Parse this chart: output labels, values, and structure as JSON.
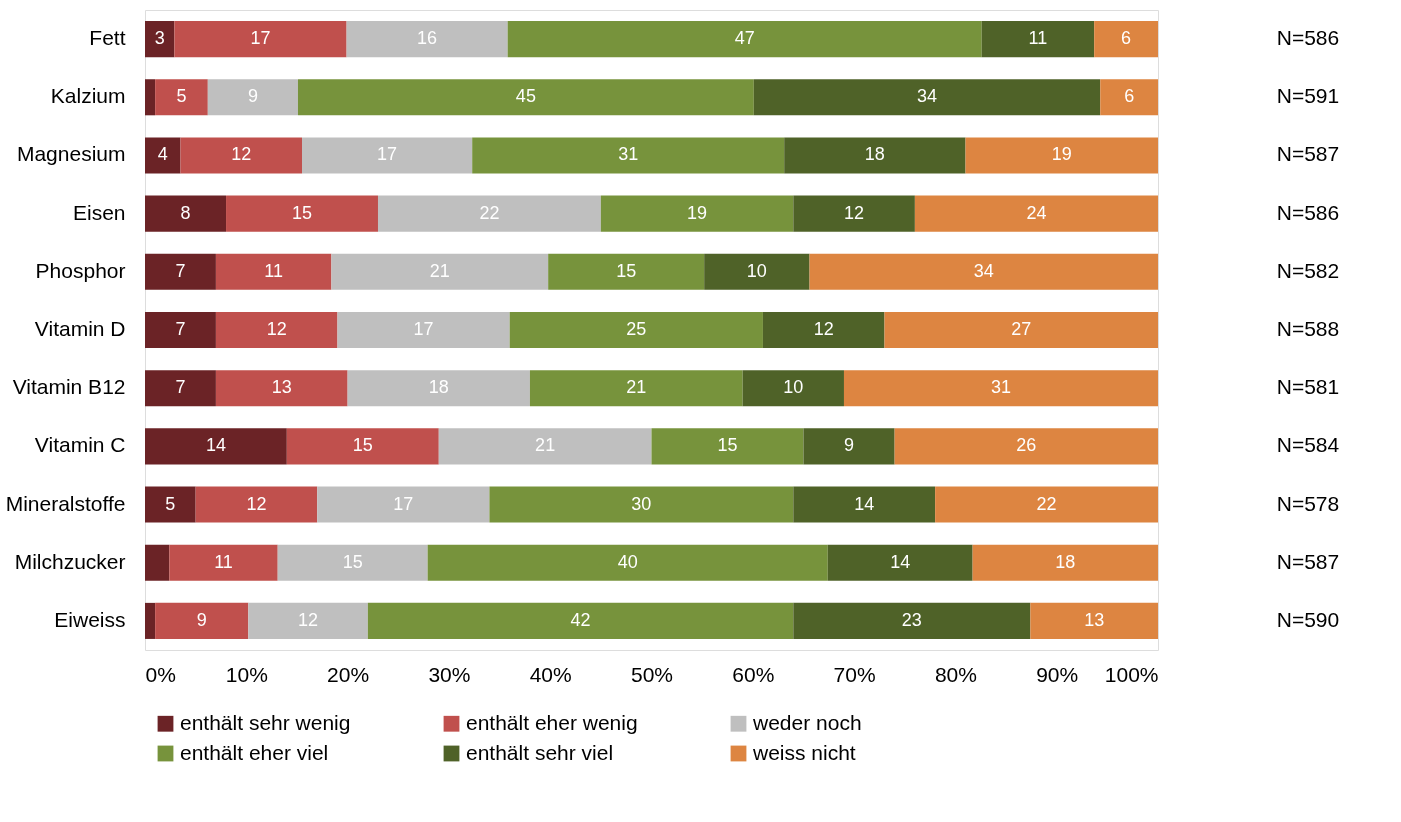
{
  "chart_data": {
    "type": "bar",
    "orientation": "horizontal",
    "stacked": true,
    "categories": [
      "Fett",
      "Kalzium",
      "Magnesium",
      "Eisen",
      "Phosphor",
      "Vitamin D",
      "Vitamin B12",
      "Vitamin C",
      "Mineralstoffe",
      "Milchzucker",
      "Eiweiss"
    ],
    "series": [
      {
        "name": "enthält sehr wenig",
        "color": "#6b2326",
        "values": [
          2.9,
          1.0,
          3.5,
          8,
          7.0,
          7,
          7,
          14,
          5,
          2.4,
          1.0
        ],
        "value_labels": [
          "3",
          null,
          "4",
          "8",
          "7",
          "7",
          "7",
          "14",
          "5",
          null,
          null
        ]
      },
      {
        "name": "enthält eher wenig",
        "color": "#c0504d",
        "values": [
          17.0,
          5.2,
          12.0,
          15,
          11.4,
          12,
          13,
          15,
          12,
          10.7,
          9.2
        ],
        "value_labels": [
          "17",
          "5",
          "12",
          "15",
          "11",
          "12",
          "13",
          "15",
          "12",
          "11",
          "9"
        ]
      },
      {
        "name": "weder noch",
        "color": "#bfbfbf",
        "values": [
          15.9,
          8.9,
          16.8,
          22,
          21.4,
          17,
          18,
          21,
          17,
          14.8,
          11.8
        ],
        "value_labels": [
          "16",
          "9",
          "17",
          "22",
          "21",
          "17",
          "18",
          "21",
          "17",
          "15",
          "12"
        ]
      },
      {
        "name": "enthält eher viel",
        "color": "#77933c",
        "values": [
          46.8,
          45.0,
          30.8,
          19,
          15.4,
          25,
          21,
          15,
          30,
          39.5,
          42.0
        ],
        "value_labels": [
          "47",
          "45",
          "31",
          "19",
          "15",
          "25",
          "21",
          "15",
          "30",
          "40",
          "42"
        ]
      },
      {
        "name": "enthält sehr viel",
        "color": "#4f6228",
        "values": [
          11.1,
          34.2,
          17.9,
          12,
          10.4,
          12,
          10,
          9,
          14,
          14.3,
          23.4
        ],
        "value_labels": [
          "11",
          "34",
          "18",
          "12",
          "10",
          "12",
          "10",
          "9",
          "14",
          "14",
          "23"
        ]
      },
      {
        "name": "weiss nicht",
        "color": "#dd8541",
        "values": [
          6.3,
          5.7,
          19.0,
          24,
          34.4,
          27,
          31,
          26,
          22,
          18.3,
          12.6
        ],
        "value_labels": [
          "6",
          "6",
          "19",
          "24",
          "34",
          "27",
          "31",
          "26",
          "22",
          "18",
          "13"
        ]
      }
    ],
    "xlim": [
      0,
      100
    ],
    "xticks": [
      {
        "value": 0,
        "label": "0%"
      },
      {
        "value": 10,
        "label": "10%"
      },
      {
        "value": 20,
        "label": "20%"
      },
      {
        "value": 30,
        "label": "30%"
      },
      {
        "value": 40,
        "label": "40%"
      },
      {
        "value": 50,
        "label": "50%"
      },
      {
        "value": 60,
        "label": "60%"
      },
      {
        "value": 70,
        "label": "70%"
      },
      {
        "value": 80,
        "label": "80%"
      },
      {
        "value": 90,
        "label": "90%"
      },
      {
        "value": 100,
        "label": "100%"
      }
    ],
    "annotations": [
      "N=586",
      "N=591",
      "N=587",
      "N=586",
      "N=582",
      "N=588",
      "N=581",
      "N=584",
      "N=578",
      "N=587",
      "N=590"
    ],
    "grid": false,
    "legend": "bottom"
  }
}
